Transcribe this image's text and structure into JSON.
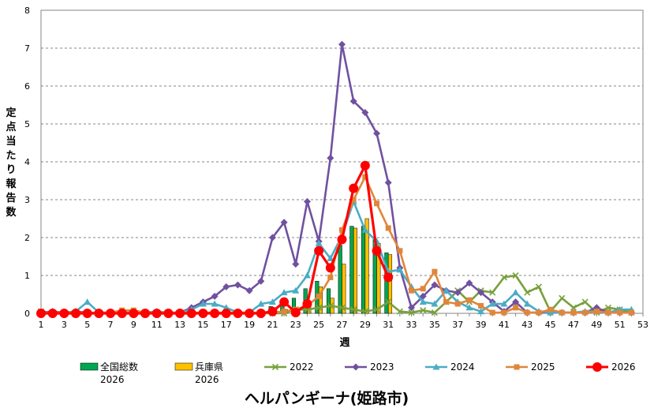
{
  "chart_data": {
    "type": "line",
    "title": "ヘルパンギーナ(姫路市)",
    "xlabel": "週",
    "ylabel": "定点当たり報告数",
    "xlim": [
      1,
      53
    ],
    "ylim": [
      0,
      8
    ],
    "x_ticks": [
      1,
      3,
      5,
      7,
      9,
      11,
      13,
      15,
      17,
      19,
      21,
      23,
      25,
      27,
      29,
      31,
      33,
      35,
      37,
      39,
      41,
      43,
      45,
      47,
      49,
      51,
      53
    ],
    "y_ticks": [
      0,
      1,
      2,
      3,
      4,
      5,
      6,
      7,
      8
    ],
    "grid": true,
    "legend_position": "bottom",
    "bar_series": [
      {
        "name_line1": "全国総数",
        "name_line2": "2026",
        "color": "#00A651",
        "x": [
          17,
          18,
          19,
          20,
          21,
          22,
          23,
          24,
          25,
          26,
          27,
          28,
          29,
          30,
          31
        ],
        "values": [
          0.04,
          0.06,
          0.07,
          0.08,
          0.18,
          0.3,
          0.4,
          0.65,
          0.85,
          0.65,
          1.8,
          2.3,
          2.3,
          1.95,
          1.6
        ]
      },
      {
        "name_line1": "兵庫県",
        "name_line2": "2026",
        "color": "#FFC000",
        "x": [
          20,
          21,
          22,
          23,
          24,
          25,
          26,
          27,
          28,
          29,
          30,
          31
        ],
        "values": [
          0.02,
          0.05,
          0.1,
          0.15,
          0.3,
          0.7,
          0.4,
          1.3,
          2.25,
          2.5,
          1.85,
          1.55
        ]
      }
    ],
    "series": [
      {
        "name": "2022",
        "color": "#77A03C",
        "marker": "x",
        "x": [
          1,
          2,
          3,
          4,
          5,
          6,
          7,
          8,
          9,
          10,
          11,
          12,
          13,
          14,
          15,
          16,
          17,
          18,
          19,
          20,
          21,
          22,
          23,
          24,
          25,
          26,
          27,
          28,
          29,
          30,
          31,
          32,
          33,
          34,
          35,
          36,
          37,
          38,
          39,
          40,
          41,
          42,
          43,
          44,
          45,
          46,
          47,
          48,
          49,
          50,
          51,
          52
        ],
        "values": [
          0.05,
          0.02,
          0.02,
          0.02,
          0.02,
          0,
          0,
          0,
          0,
          0,
          0,
          0,
          0,
          0,
          0,
          0,
          0,
          0,
          0,
          0,
          0,
          0,
          0.1,
          0.1,
          0.15,
          0.2,
          0.15,
          0.1,
          0.05,
          0.1,
          0.3,
          0.05,
          0.02,
          0.08,
          0.02,
          0.3,
          0.6,
          0.3,
          0.6,
          0.55,
          0.95,
          1.0,
          0.55,
          0.7,
          0.05,
          0.4,
          0.15,
          0.3,
          0.02,
          0.15,
          0.1,
          0.02
        ]
      },
      {
        "name": "2023",
        "color": "#7051A0",
        "marker": "diamond",
        "x": [
          1,
          2,
          3,
          4,
          5,
          6,
          7,
          8,
          9,
          10,
          11,
          12,
          13,
          14,
          15,
          16,
          17,
          18,
          19,
          20,
          21,
          22,
          23,
          24,
          25,
          26,
          27,
          28,
          29,
          30,
          31,
          32,
          33,
          34,
          35,
          36,
          37,
          38,
          39,
          40,
          41,
          42,
          43,
          44,
          45,
          46,
          47,
          48,
          49,
          50,
          51,
          52
        ],
        "values": [
          0.02,
          0.05,
          0.02,
          0.05,
          0.02,
          0,
          0.02,
          0.02,
          0.02,
          0,
          0,
          0,
          0.02,
          0.15,
          0.3,
          0.45,
          0.7,
          0.75,
          0.6,
          0.85,
          2.0,
          2.4,
          1.3,
          2.95,
          1.9,
          4.1,
          7.1,
          5.6,
          5.3,
          4.75,
          3.45,
          1.2,
          0.15,
          0.45,
          0.75,
          0.6,
          0.55,
          0.8,
          0.55,
          0.3,
          0.05,
          0.3,
          0.02,
          0.02,
          0.02,
          0.02,
          0.02,
          0.02,
          0.15,
          0.02,
          0.02,
          0.02
        ]
      },
      {
        "name": "2024",
        "color": "#4AACC5",
        "marker": "triangle",
        "x": [
          1,
          2,
          3,
          4,
          5,
          6,
          7,
          8,
          9,
          10,
          11,
          12,
          13,
          14,
          15,
          16,
          17,
          18,
          19,
          20,
          21,
          22,
          23,
          24,
          25,
          26,
          27,
          28,
          29,
          30,
          31,
          32,
          33,
          34,
          35,
          36,
          37,
          38,
          39,
          40,
          41,
          42,
          43,
          44,
          45,
          46,
          47,
          48,
          49,
          50,
          51,
          52
        ],
        "values": [
          0.02,
          0.02,
          0.02,
          0.05,
          0.3,
          0.02,
          0.02,
          0.02,
          0.02,
          0.02,
          0.05,
          0.02,
          0.02,
          0.1,
          0.25,
          0.25,
          0.15,
          0.02,
          0.02,
          0.25,
          0.3,
          0.55,
          0.6,
          1.0,
          1.85,
          1.45,
          2.05,
          2.95,
          2.2,
          1.9,
          1.1,
          1.15,
          0.7,
          0.3,
          0.25,
          0.6,
          0.3,
          0.15,
          0.05,
          0.25,
          0.25,
          0.55,
          0.25,
          0.05,
          0.02,
          0.02,
          0.02,
          0.05,
          0.05,
          0.02,
          0.1,
          0.1
        ]
      },
      {
        "name": "2025",
        "color": "#E0863A",
        "marker": "square",
        "x": [
          1,
          2,
          3,
          4,
          5,
          6,
          7,
          8,
          9,
          10,
          11,
          12,
          13,
          14,
          15,
          16,
          17,
          18,
          19,
          20,
          21,
          22,
          23,
          24,
          25,
          26,
          27,
          28,
          29,
          30,
          31,
          32,
          33,
          34,
          35,
          36,
          37,
          38,
          39,
          40,
          41,
          42,
          43,
          44,
          45,
          46,
          47,
          48,
          49,
          50,
          51,
          52
        ],
        "values": [
          0.02,
          0.02,
          0.02,
          0.02,
          0.02,
          0.02,
          0.02,
          0.08,
          0.08,
          0.02,
          0.02,
          0.02,
          0.02,
          0.02,
          0.02,
          0.02,
          0.02,
          0.02,
          0.02,
          0.02,
          0.02,
          0.05,
          0.1,
          0.2,
          0.45,
          0.95,
          2.2,
          3.0,
          3.6,
          2.9,
          2.25,
          1.65,
          0.6,
          0.65,
          1.1,
          0.3,
          0.25,
          0.35,
          0.2,
          0.02,
          0.02,
          0.15,
          0.02,
          0.02,
          0.1,
          0.02,
          0.02,
          0.02,
          0.05,
          0.02,
          0.02,
          0.02
        ]
      },
      {
        "name": "2026",
        "color": "#FF0000",
        "marker": "circle",
        "x": [
          1,
          2,
          3,
          4,
          5,
          6,
          7,
          8,
          9,
          10,
          11,
          12,
          13,
          14,
          15,
          16,
          17,
          18,
          19,
          20,
          21,
          22,
          23,
          24,
          25,
          26,
          27,
          28,
          29,
          30,
          31
        ],
        "values": [
          0,
          0,
          0,
          0,
          0,
          0,
          0,
          0,
          0,
          0,
          0,
          0,
          0,
          0,
          0,
          0,
          0,
          0,
          0,
          0,
          0.05,
          0.3,
          0.02,
          0.25,
          1.65,
          1.2,
          1.95,
          3.3,
          3.9,
          1.65,
          0.95
        ]
      }
    ]
  }
}
